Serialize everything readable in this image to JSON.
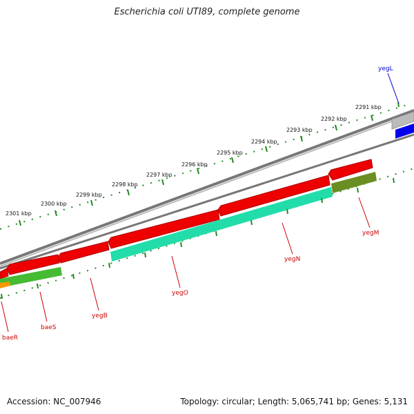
{
  "title": "Escherichia coli UTI89, complete genome",
  "accession": "Accession: NC_007946",
  "topology": "Topology: circular; Length: 5,065,741 bp; Genes: 5,131",
  "ticks": [
    "2291 kbp",
    "2292 kbp",
    "2293 kbp",
    "2294 kbp",
    "2295 kbp",
    "2296 kbp",
    "2297 kbp",
    "2298 kbp",
    "2299 kbp",
    "2300 kbp",
    "2301 kbp"
  ],
  "genes": [
    {
      "name": "yegL",
      "color": "#0000ff"
    },
    {
      "name": "yegM",
      "color": "#cc0000"
    },
    {
      "name": "yegN",
      "color": "#cc0000"
    },
    {
      "name": "yegO",
      "color": "#cc0000"
    },
    {
      "name": "yegB",
      "color": "#cc0000"
    },
    {
      "name": "baeS",
      "color": "#cc0000"
    },
    {
      "name": "baeR",
      "color": "#cc0000"
    }
  ],
  "colors": {
    "cds": "#ff0000",
    "cog_teal": "#33eeaa",
    "cog_olive": "#6b8e23",
    "cog_green": "#44cc33",
    "cog_orange": "#ff9900",
    "ticks": "#228822",
    "backbone": "#888888",
    "yegL_gray": "#bbbbbb",
    "yegL_blue": "#0000ee"
  }
}
